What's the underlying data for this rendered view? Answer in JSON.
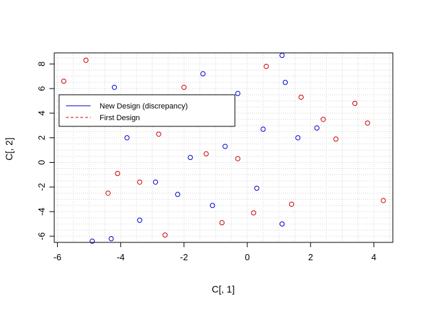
{
  "chart_data": {
    "type": "scatter",
    "title": "",
    "xlabel": "C[, 1]",
    "ylabel": "C[, 2]",
    "xlim": [
      -6.1,
      4.6
    ],
    "ylim": [
      -6.5,
      8.9
    ],
    "xticks": [
      -6,
      -4,
      -2,
      0,
      2,
      4
    ],
    "yticks": [
      -6,
      -4,
      -2,
      0,
      2,
      4,
      6,
      8
    ],
    "grid": true,
    "legend": {
      "placement": "top-left",
      "entries": [
        {
          "label": "New Design (discrepancy)",
          "color": "#0000cc",
          "line_style": "solid"
        },
        {
          "label": "First Design",
          "color": "#cc0000",
          "line_style": "dashed"
        }
      ]
    },
    "series": [
      {
        "name": "New Design (discrepancy)",
        "color": "#0000cc",
        "points": [
          [
            1.1,
            8.7
          ],
          [
            -1.4,
            7.2
          ],
          [
            1.2,
            6.5
          ],
          [
            -4.2,
            6.1
          ],
          [
            -0.3,
            5.6
          ],
          [
            0.5,
            2.7
          ],
          [
            2.2,
            2.8
          ],
          [
            1.6,
            2.0
          ],
          [
            -3.8,
            2.0
          ],
          [
            -0.7,
            1.3
          ],
          [
            -1.8,
            0.4
          ],
          [
            -2.9,
            -1.6
          ],
          [
            0.3,
            -2.1
          ],
          [
            -2.2,
            -2.6
          ],
          [
            -1.1,
            -3.5
          ],
          [
            -3.4,
            -4.7
          ],
          [
            1.1,
            -5.0
          ],
          [
            -4.3,
            -6.2
          ],
          [
            -4.9,
            -6.4
          ]
        ]
      },
      {
        "name": "First Design",
        "color": "#cc0000",
        "points": [
          [
            -5.1,
            8.3
          ],
          [
            0.6,
            7.8
          ],
          [
            -5.8,
            6.6
          ],
          [
            -2.0,
            6.1
          ],
          [
            1.7,
            5.3
          ],
          [
            3.4,
            4.8
          ],
          [
            2.4,
            3.5
          ],
          [
            3.8,
            3.2
          ],
          [
            -2.8,
            2.3
          ],
          [
            2.8,
            1.9
          ],
          [
            -1.3,
            0.7
          ],
          [
            -0.3,
            0.3
          ],
          [
            -4.1,
            -0.9
          ],
          [
            -3.4,
            -1.6
          ],
          [
            -4.4,
            -2.5
          ],
          [
            1.4,
            -3.4
          ],
          [
            0.2,
            -4.1
          ],
          [
            -0.8,
            -4.9
          ],
          [
            -2.6,
            -5.9
          ],
          [
            4.3,
            -3.1
          ]
        ]
      }
    ]
  },
  "colors": {
    "grid": "#d3d3d3",
    "axis": "#000000",
    "background": "#ffffff"
  }
}
